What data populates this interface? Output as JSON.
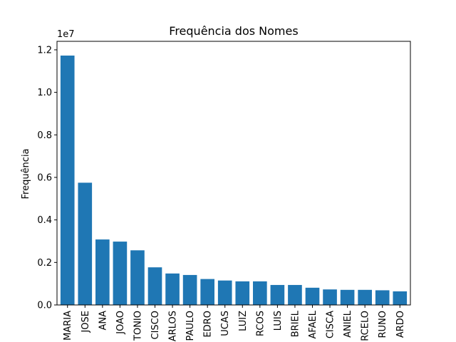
{
  "chart_data": {
    "type": "bar",
    "title": "Frequência dos Nomes",
    "xlabel": "",
    "ylabel": "Frequência",
    "y_offset_label": "1e7",
    "y_scale": 10000000,
    "ylim": [
      0,
      12000000
    ],
    "yticks": [
      {
        "value": 0,
        "label": "0.0"
      },
      {
        "value": 2000000,
        "label": "0.2"
      },
      {
        "value": 4000000,
        "label": "0.4"
      },
      {
        "value": 6000000,
        "label": "0.6"
      },
      {
        "value": 8000000,
        "label": "0.8"
      },
      {
        "value": 10000000,
        "label": "1.0"
      },
      {
        "value": 12000000,
        "label": "1.2"
      }
    ],
    "categories": [
      "MARIA",
      "JOSE",
      "ANA",
      "JOAO",
      "TONIO",
      "CISCO",
      "ARLOS",
      "PAULO",
      "EDRO",
      "UCAS",
      "LUIZ",
      "RCOS",
      "LUIS",
      "BRIEL",
      "AFAEL",
      "CISCA",
      "ANIEL",
      "RCELO",
      "RUNO",
      "ARDO"
    ],
    "values": [
      11730000,
      5750000,
      3080000,
      2980000,
      2570000,
      1770000,
      1480000,
      1410000,
      1220000,
      1150000,
      1110000,
      1110000,
      940000,
      940000,
      810000,
      730000,
      710000,
      710000,
      690000,
      640000
    ],
    "grid": false,
    "bar_color": "#1f77b4"
  }
}
